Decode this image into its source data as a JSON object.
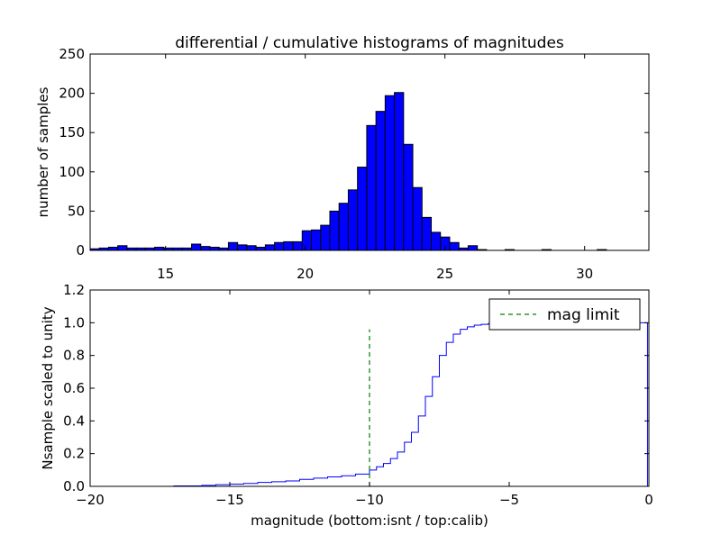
{
  "colors": {
    "bar_fill": "#0000ff",
    "bar_edge": "#000000",
    "cumulative_line": "#0000ff",
    "mag_limit_line": "#008000",
    "axes": "#000000",
    "background": "#ffffff"
  },
  "chart_data": [
    {
      "type": "bar",
      "title": "differential / cumulative histograms of magnitudes",
      "xlabel": "",
      "ylabel": "number of samples",
      "xlim": [
        12.3,
        32.3
      ],
      "ylim": [
        0,
        250
      ],
      "xticks": [
        15,
        20,
        25,
        30
      ],
      "yticks": [
        0,
        50,
        100,
        150,
        200,
        250
      ],
      "bin_width": 0.33,
      "bins": [
        {
          "x": 12.3,
          "value": 2
        },
        {
          "x": 12.63,
          "value": 3
        },
        {
          "x": 12.96,
          "value": 4
        },
        {
          "x": 13.29,
          "value": 6
        },
        {
          "x": 13.62,
          "value": 3
        },
        {
          "x": 13.95,
          "value": 3
        },
        {
          "x": 14.28,
          "value": 3
        },
        {
          "x": 14.61,
          "value": 4
        },
        {
          "x": 14.94,
          "value": 3
        },
        {
          "x": 15.27,
          "value": 3
        },
        {
          "x": 15.6,
          "value": 3
        },
        {
          "x": 15.93,
          "value": 8
        },
        {
          "x": 16.26,
          "value": 5
        },
        {
          "x": 16.59,
          "value": 4
        },
        {
          "x": 16.92,
          "value": 3
        },
        {
          "x": 17.25,
          "value": 10
        },
        {
          "x": 17.58,
          "value": 7
        },
        {
          "x": 17.91,
          "value": 6
        },
        {
          "x": 18.24,
          "value": 4
        },
        {
          "x": 18.57,
          "value": 7
        },
        {
          "x": 18.9,
          "value": 10
        },
        {
          "x": 19.23,
          "value": 11
        },
        {
          "x": 19.56,
          "value": 11
        },
        {
          "x": 19.89,
          "value": 25
        },
        {
          "x": 20.22,
          "value": 26
        },
        {
          "x": 20.55,
          "value": 32
        },
        {
          "x": 20.88,
          "value": 50
        },
        {
          "x": 21.21,
          "value": 60
        },
        {
          "x": 21.54,
          "value": 77
        },
        {
          "x": 21.87,
          "value": 106
        },
        {
          "x": 22.2,
          "value": 159
        },
        {
          "x": 22.53,
          "value": 177
        },
        {
          "x": 22.86,
          "value": 197
        },
        {
          "x": 23.19,
          "value": 201
        },
        {
          "x": 23.52,
          "value": 135
        },
        {
          "x": 23.85,
          "value": 80
        },
        {
          "x": 24.18,
          "value": 42
        },
        {
          "x": 24.51,
          "value": 23
        },
        {
          "x": 24.84,
          "value": 17
        },
        {
          "x": 25.17,
          "value": 10
        },
        {
          "x": 25.5,
          "value": 3
        },
        {
          "x": 25.83,
          "value": 6
        },
        {
          "x": 26.16,
          "value": 1
        },
        {
          "x": 27.15,
          "value": 1
        },
        {
          "x": 28.47,
          "value": 1
        },
        {
          "x": 30.45,
          "value": 1
        }
      ]
    },
    {
      "type": "line",
      "title": "",
      "xlabel": "magnitude (bottom:isnt / top:calib)",
      "ylabel": "Nsample scaled to unity",
      "xlim": [
        -20,
        0
      ],
      "ylim": [
        0,
        1.2
      ],
      "xticks": [
        -20,
        -15,
        -10,
        -5,
        0
      ],
      "yticks": [
        0.0,
        0.2,
        0.4,
        0.6,
        0.8,
        1.0,
        1.2
      ],
      "step": true,
      "series": [
        {
          "name": "",
          "x": [
            -20.0,
            -17.0,
            -16.0,
            -15.5,
            -15.0,
            -14.5,
            -14.0,
            -13.5,
            -13.0,
            -12.5,
            -12.0,
            -11.5,
            -11.0,
            -10.5,
            -10.0,
            -9.75,
            -9.5,
            -9.25,
            -9.0,
            -8.75,
            -8.5,
            -8.25,
            -8.0,
            -7.75,
            -7.5,
            -7.25,
            -7.0,
            -6.75,
            -6.5,
            -6.25,
            -6.0,
            -5.75,
            -5.5,
            -5.0,
            -4.0,
            -3.0,
            -2.0,
            -0.5,
            -0.05
          ],
          "y": [
            0.0,
            0.003,
            0.006,
            0.01,
            0.014,
            0.018,
            0.024,
            0.028,
            0.033,
            0.043,
            0.05,
            0.058,
            0.065,
            0.075,
            0.1,
            0.12,
            0.14,
            0.17,
            0.21,
            0.27,
            0.33,
            0.43,
            0.55,
            0.67,
            0.8,
            0.88,
            0.93,
            0.96,
            0.975,
            0.985,
            0.99,
            0.995,
            0.997,
            0.998,
            0.999,
            0.9995,
            1.0,
            1.0,
            0.0
          ]
        },
        {
          "name": "mag limit",
          "x": [
            -10,
            -10
          ],
          "y": [
            0,
            0.96
          ],
          "dashed": true
        }
      ],
      "legend": {
        "placement": "top-right",
        "entries": [
          "mag limit"
        ]
      }
    }
  ]
}
